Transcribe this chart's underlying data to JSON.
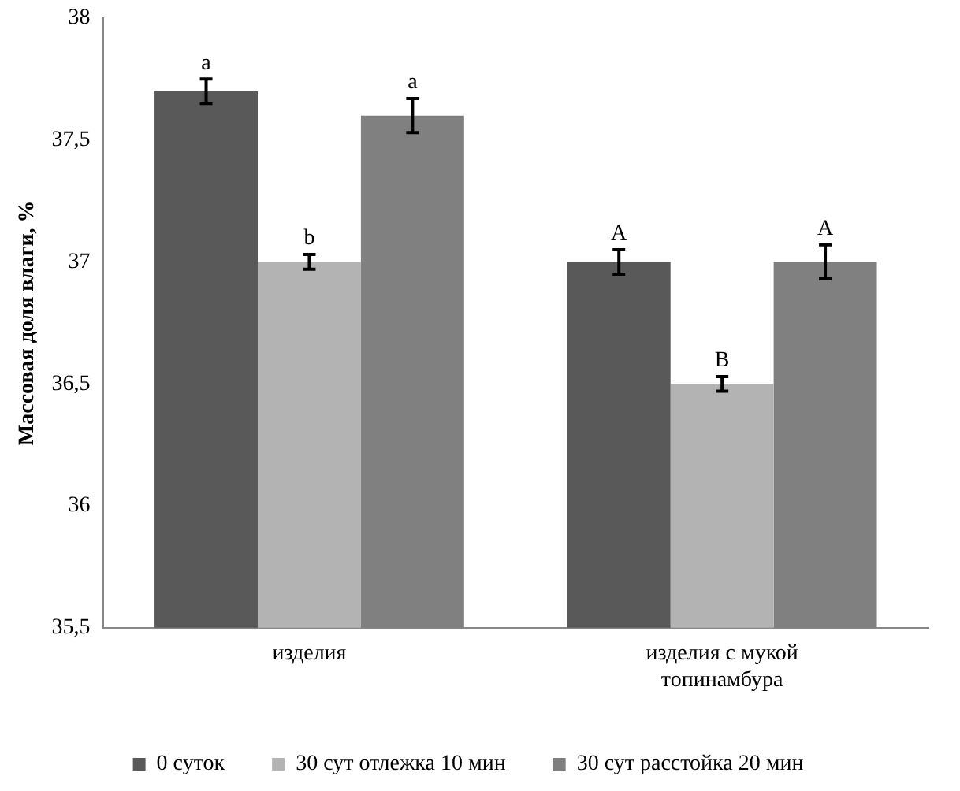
{
  "chart_data": {
    "type": "bar",
    "ylabel": "Массовая доля влаги, %",
    "categories": [
      "изделия",
      "изделия с мукой топинамбура"
    ],
    "series": [
      {
        "name": "0 суток",
        "color": "#595959",
        "values": [
          37.7,
          37.0
        ],
        "errors": [
          0.05,
          0.05
        ]
      },
      {
        "name": "30 сут отлежка 10 мин",
        "color": "#b3b3b3",
        "values": [
          37.0,
          36.5
        ],
        "errors": [
          0.03,
          0.03
        ]
      },
      {
        "name": "30 сут расстойка 20 мин",
        "color": "#808080",
        "values": [
          37.6,
          37.0
        ],
        "errors": [
          0.07,
          0.07
        ]
      }
    ],
    "ylim": [
      35.5,
      38
    ],
    "yticks": [
      {
        "value": 35.5,
        "label": "35,5"
      },
      36,
      {
        "value": 36.5,
        "label": "36,5"
      },
      37,
      {
        "value": 37.5,
        "label": "37,5"
      },
      38
    ],
    "grid": false,
    "legend": "bottom",
    "annotations": [
      "a",
      "b",
      "a",
      "A",
      "B",
      "A"
    ]
  }
}
